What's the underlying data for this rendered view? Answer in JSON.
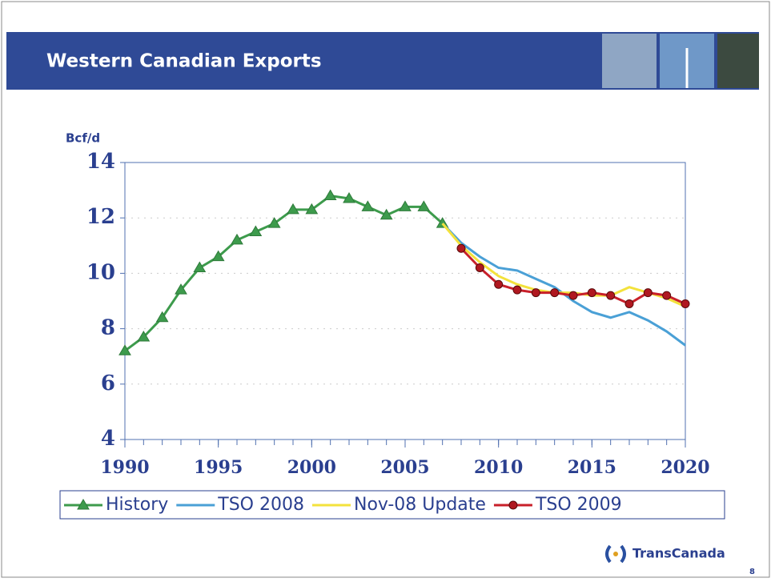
{
  "header": {
    "title": "Western Canadian Exports"
  },
  "chart_data": {
    "type": "line",
    "ylabel": "Bcf/d",
    "x": [
      1990,
      1991,
      1992,
      1993,
      1994,
      1995,
      1996,
      1997,
      1998,
      1999,
      2000,
      2001,
      2002,
      2003,
      2004,
      2005,
      2006,
      2007,
      2008,
      2009,
      2010,
      2011,
      2012,
      2013,
      2014,
      2015,
      2016,
      2017,
      2018,
      2019,
      2020
    ],
    "xlim": [
      1990,
      2020
    ],
    "xticks": [
      1990,
      1995,
      2000,
      2005,
      2010,
      2015,
      2020
    ],
    "ylim": [
      4,
      14
    ],
    "yticks": [
      4,
      6,
      8,
      10,
      12,
      14
    ],
    "grid": true,
    "series": [
      {
        "name": "History",
        "color": "#3d9b4c",
        "marker": "triangle",
        "values": [
          7.2,
          7.7,
          8.4,
          9.4,
          10.2,
          10.6,
          11.2,
          11.5,
          11.8,
          12.3,
          12.3,
          12.8,
          12.7,
          12.4,
          12.1,
          12.4,
          12.4,
          11.8,
          null,
          null,
          null,
          null,
          null,
          null,
          null,
          null,
          null,
          null,
          null,
          null,
          null
        ]
      },
      {
        "name": "TSO 2008",
        "color": "#4aa0d6",
        "marker": null,
        "values": [
          null,
          null,
          null,
          null,
          null,
          null,
          null,
          null,
          null,
          null,
          null,
          null,
          null,
          null,
          null,
          null,
          null,
          11.8,
          11.1,
          10.6,
          10.2,
          10.1,
          9.8,
          9.5,
          9.0,
          8.6,
          8.4,
          8.6,
          8.3,
          7.9,
          7.4
        ]
      },
      {
        "name": "Nov-08 Update",
        "color": "#f3e23c",
        "marker": null,
        "values": [
          null,
          null,
          null,
          null,
          null,
          null,
          null,
          null,
          null,
          null,
          null,
          null,
          null,
          null,
          null,
          null,
          null,
          11.8,
          11.0,
          10.4,
          9.9,
          9.6,
          9.4,
          9.3,
          9.3,
          9.2,
          9.2,
          9.5,
          9.3,
          9.1,
          8.8
        ]
      },
      {
        "name": "TSO 2009",
        "color": "#c8202a",
        "marker": "circle",
        "values": [
          null,
          null,
          null,
          null,
          null,
          null,
          null,
          null,
          null,
          null,
          null,
          null,
          null,
          null,
          null,
          null,
          null,
          null,
          10.9,
          10.2,
          9.6,
          9.4,
          9.3,
          9.3,
          9.2,
          9.3,
          9.2,
          8.9,
          9.3,
          9.2,
          8.9
        ]
      }
    ]
  },
  "footer": {
    "logo": "TransCanada",
    "page": "8"
  }
}
